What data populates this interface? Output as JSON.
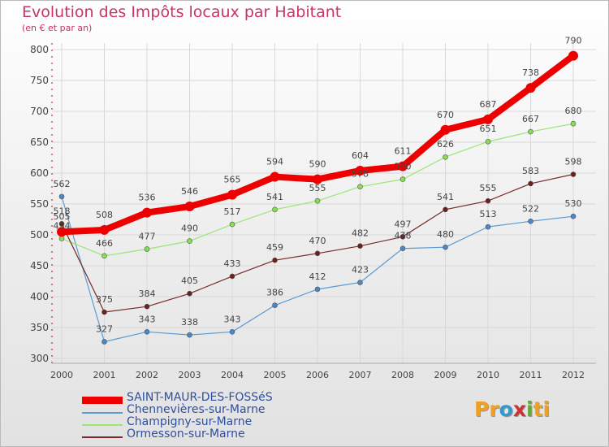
{
  "header": {
    "title": "Evolution des Impôts locaux par Habitant",
    "subtitle": "(en € et par an)"
  },
  "brand": {
    "letters": [
      "P",
      "r",
      "o",
      "x",
      "i",
      "t",
      "i"
    ],
    "colors": [
      "#f0a020",
      "#f0a020",
      "#3399cc",
      "#cc3333",
      "#66aa33",
      "#f0a020",
      "#f0a020"
    ]
  },
  "chart_data": {
    "type": "line",
    "title": "Evolution des Impôts locaux par Habitant",
    "subtitle": "(en € et par an)",
    "xlabel": "",
    "ylabel": "",
    "ylim": [
      300,
      800
    ],
    "yticks": [
      300,
      350,
      400,
      450,
      500,
      550,
      600,
      650,
      700,
      750,
      800
    ],
    "grid": true,
    "legend_position": "bottom-left",
    "categories": [
      "2000",
      "2001",
      "2002",
      "2003",
      "2004",
      "2005",
      "2006",
      "2007",
      "2008",
      "2009",
      "2010",
      "2011",
      "2012"
    ],
    "series": [
      {
        "name": "Chennevières-sur-Marne",
        "color": "#5b9bd5",
        "marker": "#4a86c8",
        "width": 1.2,
        "radius": 3,
        "values": [
          562,
          327,
          343,
          338,
          343,
          386,
          412,
          423,
          478,
          480,
          513,
          522,
          530
        ]
      },
      {
        "name": "Champigny-sur-Marne",
        "color": "#99e673",
        "marker": "#88dd55",
        "width": 1.2,
        "radius": 3,
        "values": [
          494,
          466,
          477,
          490,
          517,
          541,
          555,
          578,
          590,
          626,
          651,
          667,
          680
        ]
      },
      {
        "name": "Ormesson-sur-Marne",
        "color": "#7a2a2a",
        "marker": "#6b1f1f",
        "width": 1.2,
        "radius": 3,
        "values": [
          518,
          375,
          384,
          405,
          433,
          459,
          470,
          482,
          497,
          541,
          555,
          583,
          598
        ]
      },
      {
        "name": "SAINT-MAUR-DES-FOSSéS",
        "color": "#ee0000",
        "marker": "#ee0000",
        "width": 8,
        "radius": 6,
        "values": [
          505,
          508,
          536,
          546,
          565,
          594,
          590,
          604,
          611,
          670,
          687,
          738,
          790
        ]
      }
    ],
    "legend_order": [
      "SAINT-MAUR-DES-FOSSéS",
      "Chennevières-sur-Marne",
      "Champigny-sur-Marne",
      "Ormesson-sur-Marne"
    ]
  }
}
